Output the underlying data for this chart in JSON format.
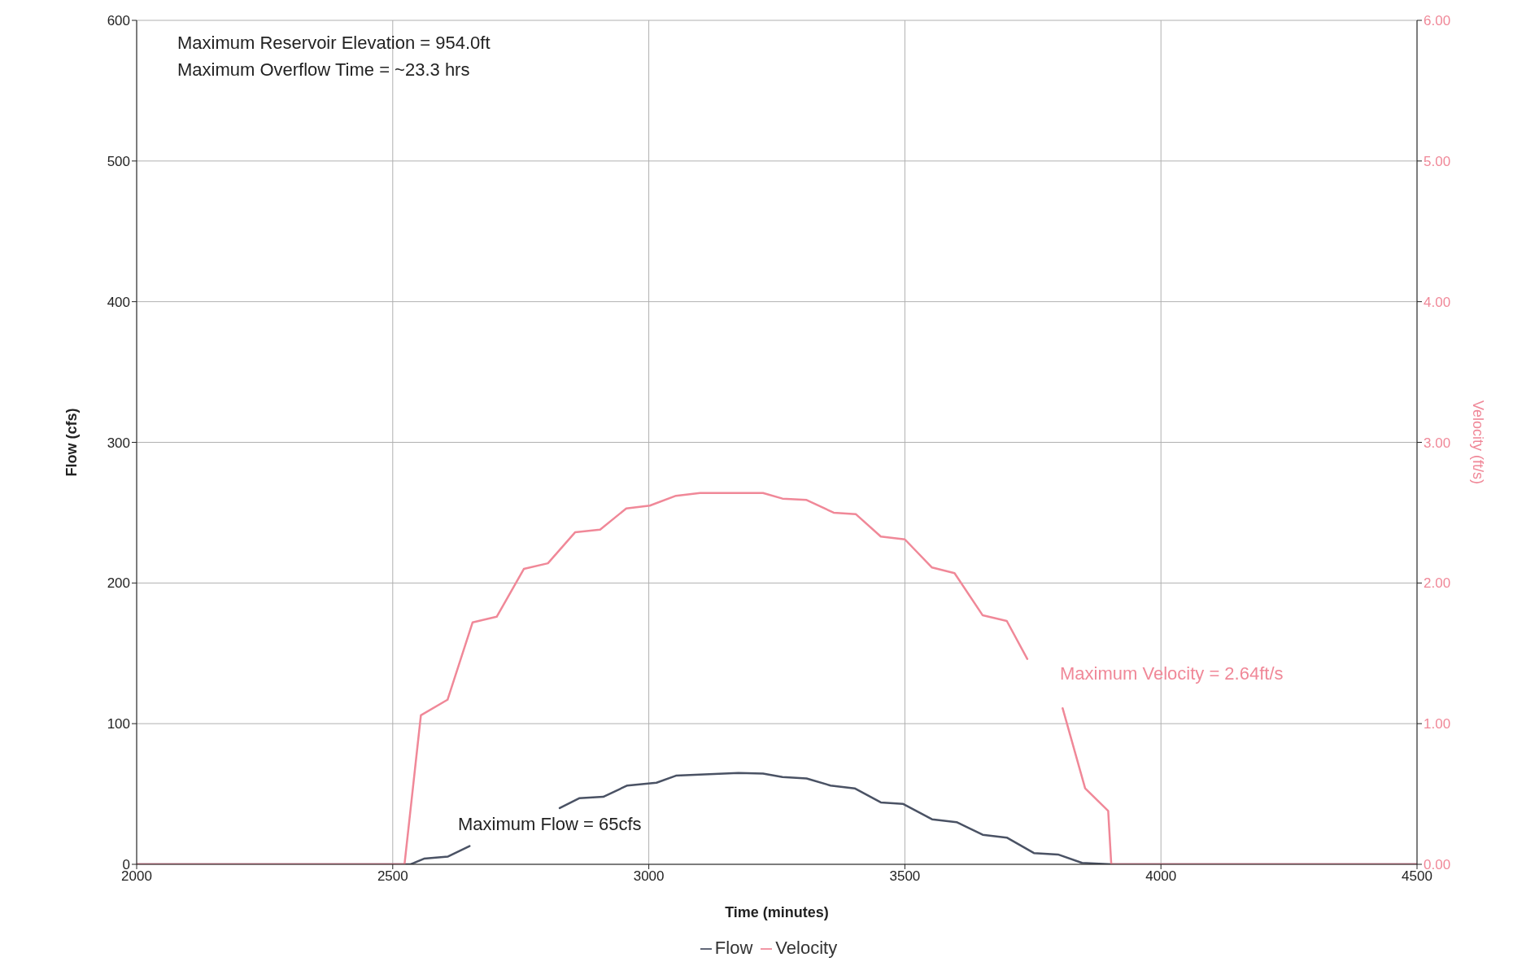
{
  "chart_data": {
    "type": "line",
    "xlabel": "Time (minutes)",
    "ylabel": "Flow (cfs)",
    "y2label": "Velocity (ft/s)",
    "xlim": [
      2000,
      4500
    ],
    "xticks": [
      2000,
      2500,
      3000,
      3500,
      4000,
      4500
    ],
    "ylim": [
      0,
      600
    ],
    "yticks": [
      0,
      100,
      200,
      300,
      400,
      500,
      600
    ],
    "y2lim": [
      0,
      6
    ],
    "y2ticks": [
      {
        "value": 0,
        "label": "0.00"
      },
      {
        "value": 1,
        "label": "1.00"
      },
      {
        "value": 2,
        "label": "2.00"
      },
      {
        "value": 3,
        "label": "3.00"
      },
      {
        "value": 4,
        "label": "4.00"
      },
      {
        "value": 5,
        "label": "5.00"
      },
      {
        "value": 6,
        "label": "6.00"
      }
    ],
    "grid": true,
    "legend": "bottom",
    "marker": "none",
    "line_style": "solid",
    "annotations": [
      "Maximum Reservoir Elevation = 954.0ft",
      "Maximum Overflow Time = ~23.3 hrs",
      "Maximum Flow = 65cfs",
      "Maximum Velocity = 2.64ft/s"
    ],
    "series": [
      {
        "name": "Flow",
        "color": "#4a5264",
        "x": [
          2000,
          2535,
          2561,
          2608,
          2650,
          2740,
          2826,
          2864,
          2911,
          2958,
          3015,
          3053,
          3109,
          3175,
          3223,
          3261,
          3308,
          3355,
          3402,
          3453,
          3496,
          3553,
          3601,
          3652,
          3699,
          3752,
          3799,
          3846,
          3903,
          4500
        ],
        "values": [
          0,
          0,
          4,
          5.5,
          13,
          null,
          40,
          47,
          48,
          56,
          58,
          63,
          64,
          65,
          64.5,
          62,
          61,
          56,
          54,
          44,
          43,
          32,
          30,
          21,
          19,
          8,
          7,
          1,
          0,
          0
        ]
      },
      {
        "name": "Velocity",
        "color": "#f08898",
        "axis": "y2",
        "x": [
          2000,
          2523,
          2555,
          2607,
          2656,
          2703,
          2756,
          2803,
          2856,
          2905,
          2956,
          3002,
          3053,
          3100,
          3223,
          3261,
          3308,
          3361,
          3404,
          3453,
          3500,
          3553,
          3597,
          3652,
          3699,
          3739,
          3775,
          3808,
          3852,
          3897,
          3903,
          4500
        ],
        "values": [
          0,
          0,
          1.06,
          1.17,
          1.72,
          1.76,
          2.1,
          2.14,
          2.36,
          2.38,
          2.53,
          2.55,
          2.62,
          2.64,
          2.64,
          2.6,
          2.59,
          2.5,
          2.49,
          2.33,
          2.31,
          2.11,
          2.07,
          1.77,
          1.73,
          1.46,
          null,
          1.11,
          0.54,
          0.38,
          0,
          0
        ]
      }
    ]
  }
}
